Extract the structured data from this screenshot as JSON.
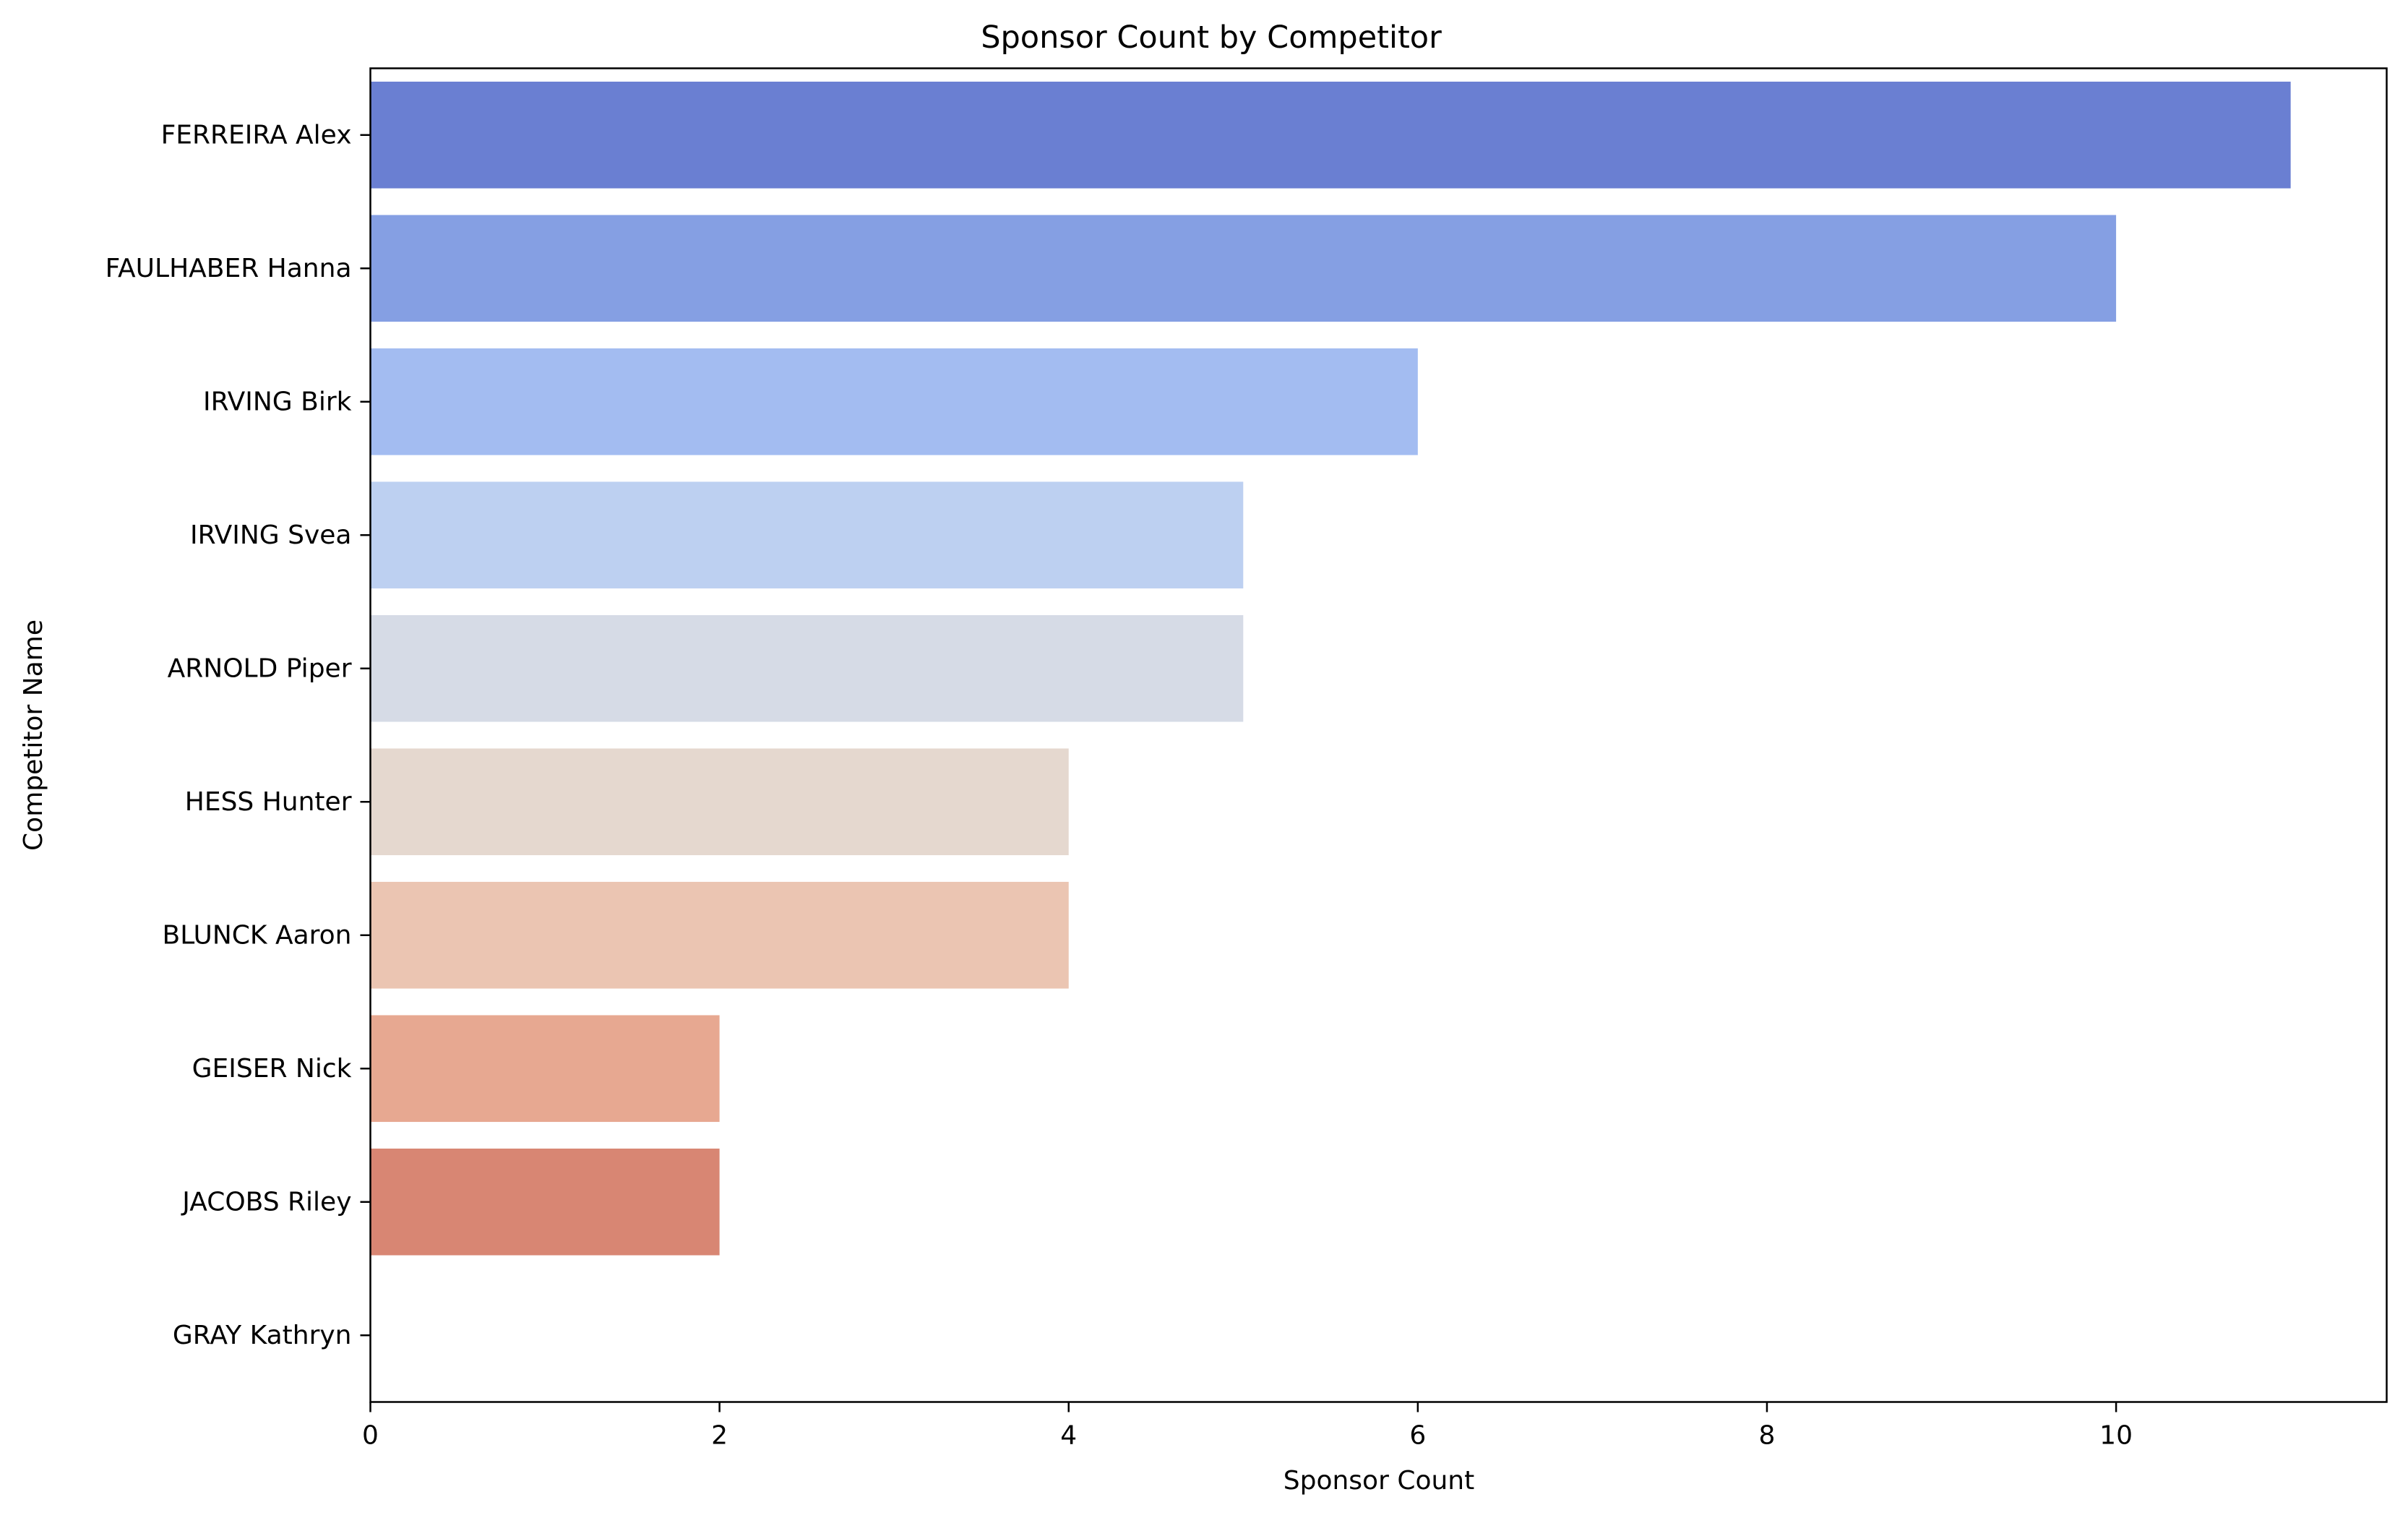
{
  "chart_data": {
    "type": "bar",
    "orientation": "horizontal",
    "title": "Sponsor Count by Competitor",
    "xlabel": "Sponsor Count",
    "ylabel": "Competitor Name",
    "categories": [
      "FERREIRA Alex",
      "FAULHABER Hanna",
      "IRVING Birk",
      "IRVING Svea",
      "ARNOLD Piper",
      "HESS Hunter",
      "BLUNCK Aaron",
      "GEISER Nick",
      "JACOBS Riley",
      "GRAY Kathryn"
    ],
    "values": [
      11,
      10,
      6,
      5,
      5,
      4,
      4,
      2,
      2,
      0
    ],
    "colors": [
      "#6a7fd2",
      "#859fe3",
      "#a3bcf1",
      "#bdd0f1",
      "#d6dbe6",
      "#e5d8cf",
      "#ebc5b2",
      "#e7a891",
      "#d88673",
      "#c4574c"
    ],
    "xlim": [
      0,
      11.55
    ],
    "xticks": [
      0,
      2,
      4,
      6,
      8,
      10
    ],
    "grid": false,
    "legend": "none"
  }
}
